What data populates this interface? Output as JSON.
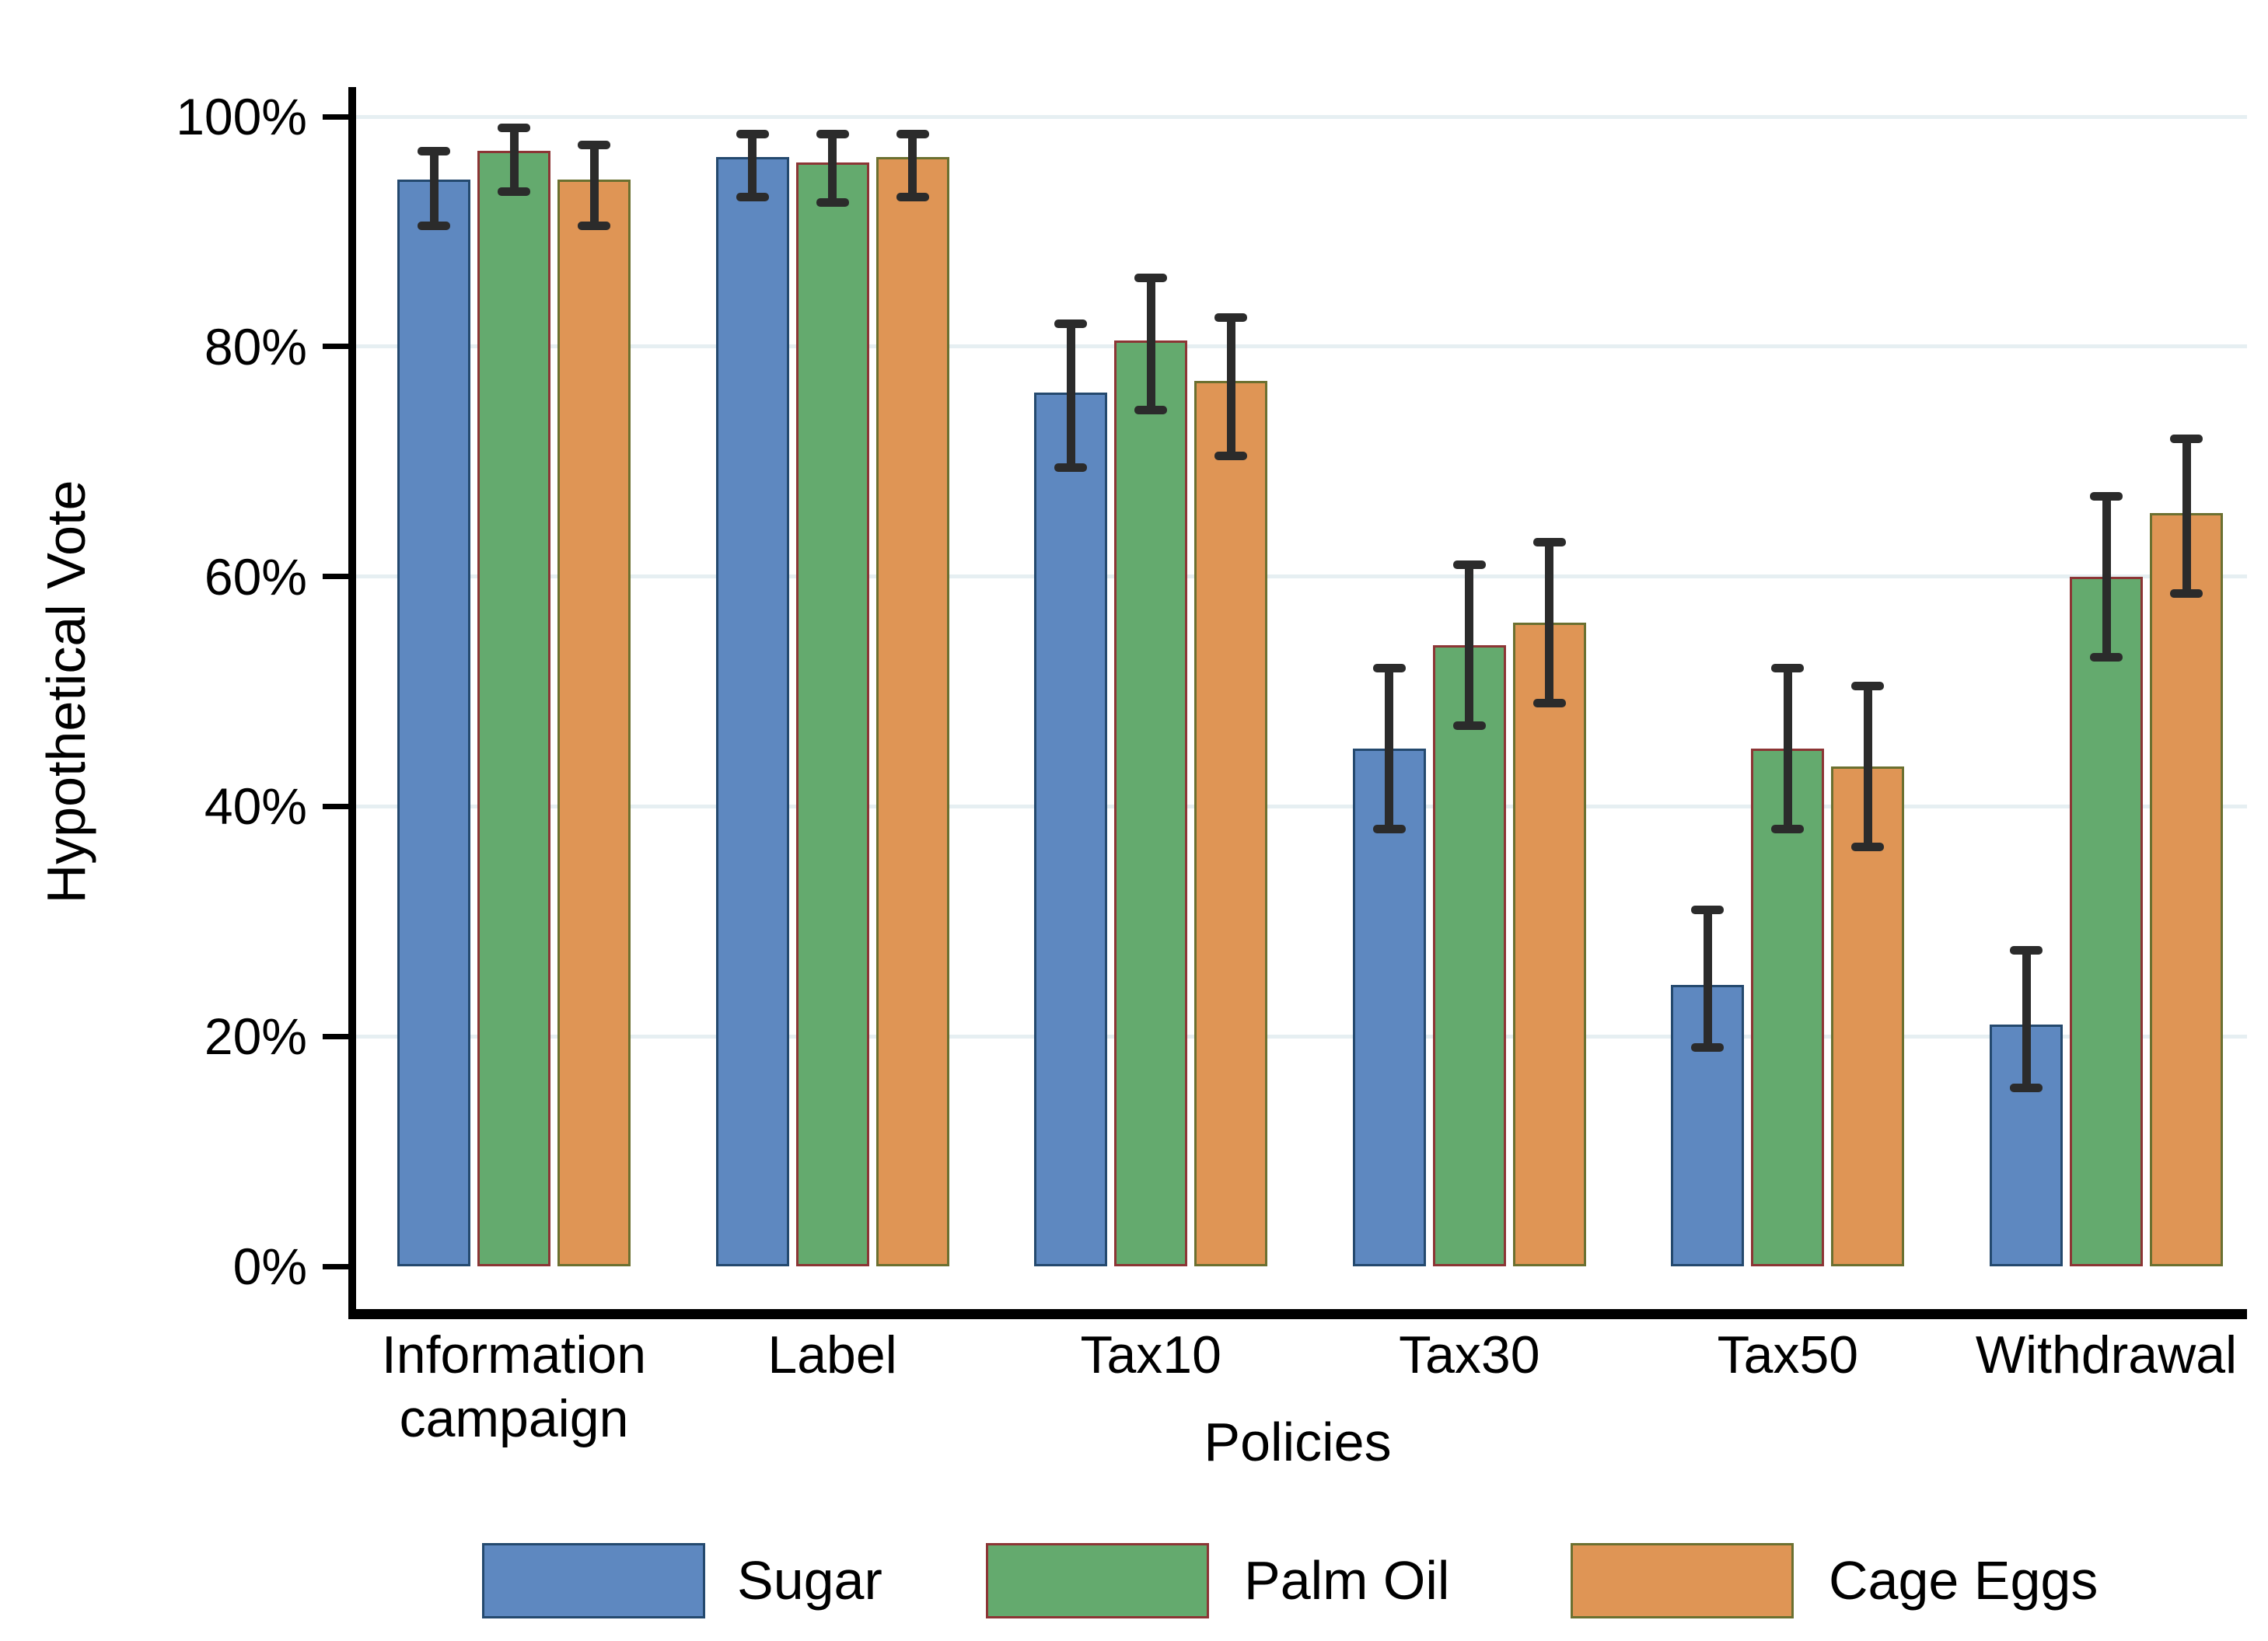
{
  "chart_data": {
    "type": "bar",
    "title": "",
    "xlabel": "Policies",
    "ylabel": "Hypothetical Vote",
    "ylim": [
      0,
      100
    ],
    "ytick_labels": [
      "0%",
      "20%",
      "40%",
      "60%",
      "80%",
      "100%"
    ],
    "ytick_values": [
      0,
      20,
      40,
      60,
      80,
      100
    ],
    "grid": "horizontal",
    "gridline_color": "#e6eff2",
    "error_bar_color": "#2b2b2b",
    "legend_position": "bottom",
    "categories": [
      "Information campaign",
      "Label",
      "Tax10",
      "Tax30",
      "Tax50",
      "Withdrawal"
    ],
    "series": [
      {
        "name": "Sugar",
        "color": "#5e88c0",
        "border_color": "#24496e",
        "values": [
          94.5,
          96.5,
          76,
          45,
          24.5,
          21
        ],
        "ci_low": [
          90.5,
          93,
          69.5,
          38,
          19,
          15.5
        ],
        "ci_high": [
          97,
          98.5,
          82,
          52,
          31,
          27.5
        ]
      },
      {
        "name": "Palm Oil",
        "color": "#64aa6e",
        "border_color": "#8c3535",
        "values": [
          97,
          96,
          80.5,
          54,
          45,
          60
        ],
        "ci_low": [
          93.5,
          92.5,
          74.5,
          47,
          38,
          53
        ],
        "ci_high": [
          99,
          98.5,
          86,
          61,
          52,
          67
        ]
      },
      {
        "name": "Cage Eggs",
        "color": "#df9555",
        "border_color": "#6b7030",
        "values": [
          94.5,
          96.5,
          77,
          56,
          43.5,
          65.5
        ],
        "ci_low": [
          90.5,
          93,
          70.5,
          49,
          36.5,
          58.5
        ],
        "ci_high": [
          97.5,
          98.5,
          82.5,
          63,
          50.5,
          72
        ]
      }
    ]
  }
}
